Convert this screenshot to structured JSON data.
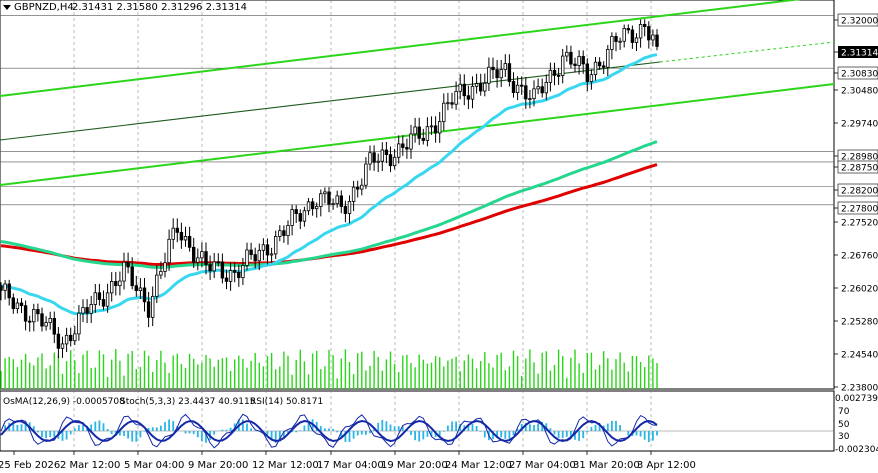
{
  "header": {
    "symbol": "GBPNZD,H4",
    "ohlc": "2.31431 2.31580 2.31296 2.31314",
    "menu_icon": "triangle-down-icon"
  },
  "indicator_header": {
    "osma": "OsMA(12,26,9) -0.0005708",
    "stoch": "Stoch(5,3,3) 23.4437 40.9115",
    "rsi": "RSI(14) 50.8171"
  },
  "colors": {
    "bull": "#000000",
    "bear": "#000000",
    "ema_fast": "#39d7ef",
    "ema_mid": "#25d68e",
    "ema_slow": "#e00000",
    "channel": "#2bd51a",
    "trend_dark": "#1e5b1e",
    "volume": "#2bd51a",
    "osma": "#29b6e6",
    "stoch_main": "#1428a8",
    "stoch_signal": "#1428a8",
    "price_label_bg": "#000000"
  },
  "chart_data": {
    "type": "candlestick",
    "price_axis": {
      "ticks": [
        "2.32000",
        "2.31314",
        "2.30830",
        "2.30480",
        "2.29740",
        "2.28980",
        "2.28750",
        "2.28200",
        "2.27800",
        "2.27520",
        "2.26760",
        "2.26020",
        "2.25280",
        "2.24540",
        "2.23800"
      ],
      "ylim": [
        2.238,
        2.323
      ],
      "current_price": "2.31314"
    },
    "time_axis": {
      "labels": [
        "25 Feb 2026",
        "2 Mar 12:00",
        "5 Mar 04:00",
        "9 Mar 20:00",
        "12 Mar 12:00",
        "17 Mar 04:00",
        "19 Mar 20:00",
        "24 Mar 12:00",
        "27 Mar 04:00",
        "31 Mar 20:00",
        "3 Apr 12:00"
      ]
    },
    "horizontal_levels": [
      2.32,
      2.3083,
      2.2898,
      2.2875,
      2.282,
      2.278
    ],
    "close_anchor_points": [
      [
        0,
        2.258
      ],
      [
        8,
        2.2535
      ],
      [
        15,
        2.2475
      ],
      [
        22,
        2.2555
      ],
      [
        30,
        2.263
      ],
      [
        36,
        2.256
      ],
      [
        43,
        2.273
      ],
      [
        50,
        2.264
      ],
      [
        57,
        2.263
      ],
      [
        63,
        2.2672
      ],
      [
        70,
        2.273
      ],
      [
        77,
        2.28
      ],
      [
        83,
        2.277
      ],
      [
        90,
        2.287
      ],
      [
        97,
        2.2905
      ],
      [
        103,
        2.2935
      ],
      [
        110,
        2.301
      ],
      [
        117,
        2.3055
      ],
      [
        123,
        2.3075
      ],
      [
        130,
        2.301
      ],
      [
        137,
        2.311
      ],
      [
        143,
        2.307
      ],
      [
        150,
        2.314
      ],
      [
        157,
        2.318
      ],
      [
        160,
        2.3131
      ]
    ],
    "indicator_scales": {
      "osma": [
        "0.002739",
        "-0.002304"
      ],
      "stoch_rsi": [
        "70",
        "50",
        "30"
      ]
    }
  }
}
